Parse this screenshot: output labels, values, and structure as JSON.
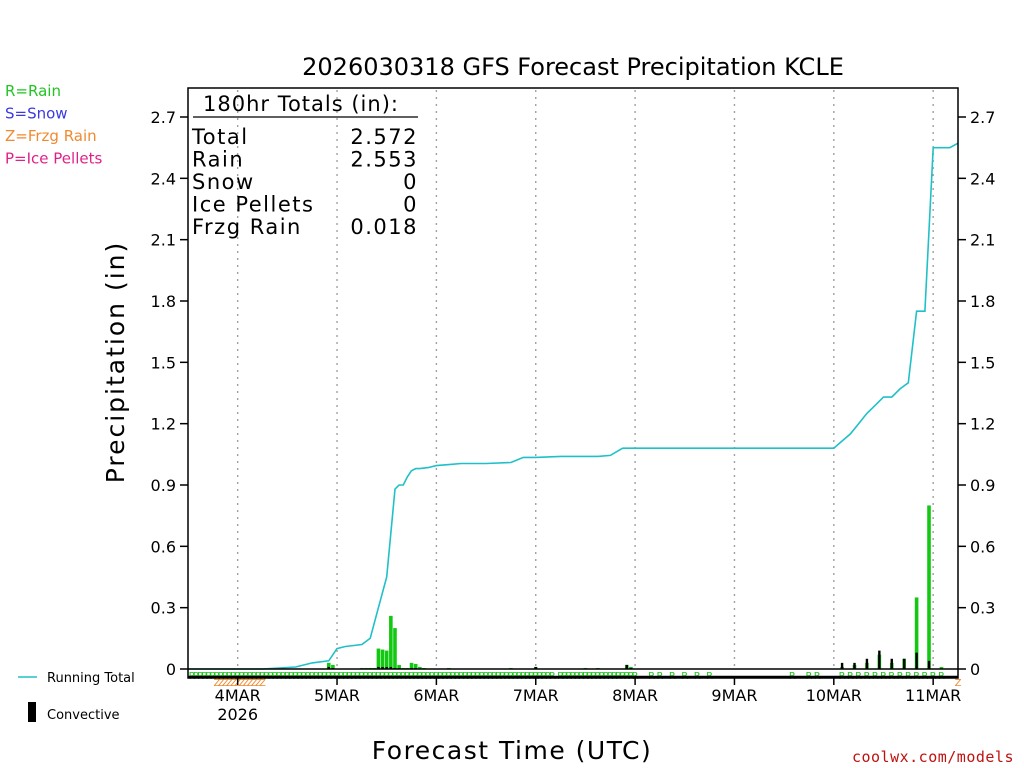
{
  "chart_data": {
    "type": "line",
    "title": "2026030318 GFS Forecast Precipitation KCLE",
    "xlabel": "Forecast Time (UTC)",
    "ylabel": "Precipitation (in)",
    "ylim": [
      0,
      2.85
    ],
    "y_ticks": [
      "0",
      "0.3",
      "0.6",
      "0.9",
      "1.2",
      "1.5",
      "1.8",
      "2.1",
      "2.4",
      "2.7"
    ],
    "y_tick_values": [
      0,
      0.3,
      0.6,
      0.9,
      1.2,
      1.5,
      1.8,
      2.1,
      2.4,
      2.7
    ],
    "xlim_hours": [
      -6,
      180
    ],
    "x_ticks": [
      {
        "label": "4MAR",
        "sublabel": "2026",
        "hour": 6
      },
      {
        "label": "5MAR",
        "hour": 30
      },
      {
        "label": "6MAR",
        "hour": 54
      },
      {
        "label": "7MAR",
        "hour": 78
      },
      {
        "label": "8MAR",
        "hour": 102
      },
      {
        "label": "9MAR",
        "hour": 126
      },
      {
        "label": "10MAR",
        "hour": 150
      },
      {
        "label": "11MAR",
        "hour": 174
      }
    ],
    "type_legend": [
      {
        "text": "R=Rain",
        "color": "#22c422"
      },
      {
        "text": "S=Snow",
        "color": "#3a3ae0"
      },
      {
        "text": "Z=Frzg Rain",
        "color": "#f08a30"
      },
      {
        "text": "P=Ice Pellets",
        "color": "#e0208a"
      }
    ],
    "totals": {
      "header": "180hr Totals (in):",
      "rows": [
        {
          "label": "Total",
          "value": "2.572"
        },
        {
          "label": "Rain",
          "value": "2.553"
        },
        {
          "label": "Snow",
          "value": "0"
        },
        {
          "label": "Ice Pellets",
          "value": "0"
        },
        {
          "label": "Frzg Rain",
          "value": "0.018"
        }
      ]
    },
    "series_legend": [
      {
        "name": "Running Total",
        "color": "#20c0c8"
      },
      {
        "name": "Convective",
        "color": "#000000"
      }
    ],
    "running_total": {
      "hours": [
        -6,
        0,
        12,
        20,
        24,
        28,
        30,
        32,
        36,
        38,
        40,
        42,
        44,
        45,
        46,
        47,
        48,
        49,
        50,
        52,
        54,
        57,
        60,
        66,
        72,
        75,
        78,
        84,
        90,
        93,
        96,
        99,
        102,
        126,
        150,
        152,
        154,
        156,
        158,
        160,
        162,
        164,
        166,
        168,
        170,
        172,
        174,
        176,
        178,
        180
      ],
      "values": [
        0,
        0,
        0,
        0.01,
        0.03,
        0.04,
        0.1,
        0.11,
        0.12,
        0.15,
        0.3,
        0.45,
        0.88,
        0.9,
        0.9,
        0.94,
        0.97,
        0.98,
        0.98,
        0.985,
        0.995,
        1.0,
        1.005,
        1.005,
        1.01,
        1.035,
        1.035,
        1.04,
        1.04,
        1.04,
        1.045,
        1.08,
        1.08,
        1.08,
        1.08,
        1.115,
        1.15,
        1.2,
        1.25,
        1.29,
        1.33,
        1.33,
        1.37,
        1.4,
        1.75,
        1.75,
        2.55,
        2.55,
        2.55,
        2.572
      ]
    },
    "bars": {
      "hours": [
        28,
        29,
        36,
        37,
        38,
        39,
        40,
        41,
        42,
        43,
        44,
        45,
        46,
        47,
        48,
        49,
        50,
        51,
        57,
        72,
        78,
        90,
        93,
        100,
        101,
        152,
        155,
        158,
        161,
        164,
        167,
        170,
        173,
        176
      ],
      "totals": [
        0.03,
        0.02,
        0.005,
        0.005,
        0.005,
        0.005,
        0.1,
        0.095,
        0.09,
        0.26,
        0.2,
        0.02,
        0.005,
        0.005,
        0.03,
        0.025,
        0.01,
        0.005,
        0.005,
        0.005,
        0.01,
        0.005,
        0.005,
        0.02,
        0.01,
        0.01,
        0.02,
        0.03,
        0.07,
        0.03,
        0.05,
        0.35,
        0.8,
        0.01
      ],
      "convective": [
        0.01,
        0.005,
        0,
        0,
        0,
        0,
        0.01,
        0.01,
        0.01,
        0.01,
        0.005,
        0.005,
        0,
        0,
        0.005,
        0.005,
        0,
        0,
        0,
        0,
        0.01,
        0,
        0,
        0.02,
        0.005,
        0.03,
        0.03,
        0.05,
        0.09,
        0.05,
        0.05,
        0.08,
        0.04,
        0
      ]
    },
    "ptype_markers": {
      "rain_hours": [
        -5,
        -4,
        -3,
        -2,
        -1,
        0,
        1,
        2,
        3,
        4,
        5,
        6,
        7,
        8,
        9,
        10,
        11,
        12,
        13,
        14,
        15,
        16,
        17,
        18,
        19,
        20,
        21,
        22,
        23,
        24,
        25,
        26,
        27,
        28,
        29,
        30,
        31,
        32,
        33,
        34,
        35,
        36,
        37,
        38,
        39,
        40,
        41,
        42,
        43,
        44,
        45,
        46,
        47,
        48,
        49,
        50,
        51,
        52,
        53,
        54,
        55,
        56,
        57,
        58,
        59,
        60,
        61,
        62,
        63,
        64,
        65,
        66,
        67,
        68,
        69,
        70,
        71,
        72,
        73,
        74,
        75,
        76,
        77,
        78,
        79,
        80,
        81,
        82,
        84,
        85,
        86,
        87,
        88,
        89,
        90,
        91,
        92,
        93,
        94,
        95,
        96,
        97,
        98,
        99,
        100,
        101,
        102,
        106,
        108,
        111,
        114,
        117,
        120,
        140,
        144,
        146,
        152,
        154,
        156,
        158,
        160,
        162,
        164,
        166,
        168,
        170,
        172,
        174,
        176
      ],
      "frz_hours": [
        1,
        2,
        3,
        4,
        5,
        6,
        7,
        8,
        9,
        10,
        11,
        12,
        180
      ],
      "rain_glyph": "R",
      "frz_glyph": "Z"
    },
    "watermark": "coolwx.com/models"
  }
}
